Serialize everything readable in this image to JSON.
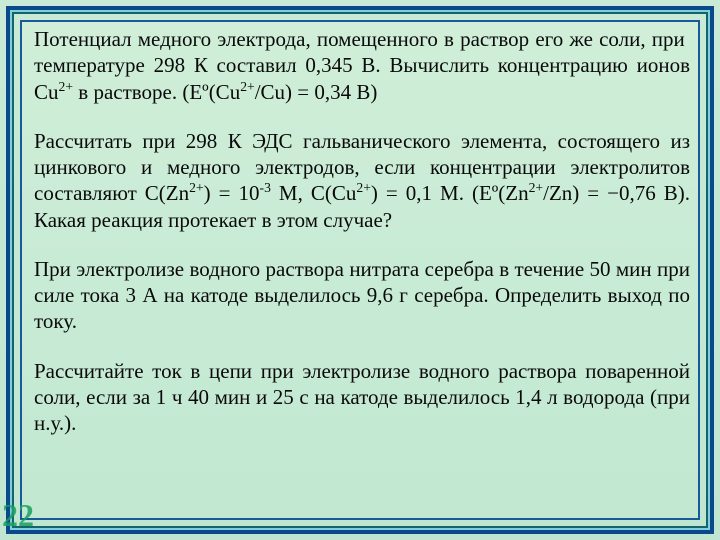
{
  "page_number": "22",
  "colors": {
    "background_top": "#c8ead6",
    "background_bottom": "#c0e6d2",
    "frame_outer": "#0a4a8a",
    "frame_highlight": "#7fcfe0",
    "frame_dark": "#14646a",
    "frame_inner": "#165a9a",
    "text_color": "#0a0a0a",
    "page_number_color": "#1aa060"
  },
  "typography": {
    "body_font": "Times New Roman",
    "body_fontsize": 21,
    "page_number_fontsize": 32,
    "line_height": 1.25,
    "align": "justify"
  },
  "paragraphs": {
    "p1": "Потенциал медного электрода, помещенного в раствор его же соли, при температуре 298 К составил 0,345 В. Вычислить концентрацию ионов Cu²⁺ в растворе. (Eº(Cu²⁺/Cu) = 0,34 В)",
    "p2": "Рассчитать при 298 К ЭДС гальванического элемента, состоящего из цинкового и медного электродов, если концентрации электролитов составляют С(Zn²⁺) = 10⁻³ М, С(Cu²⁺) = 0,1 М. (Eº(Zn²⁺/Zn) = −0,76 В). Какая реакция протекает в этом случае?",
    "p3": "При электролизе водного раствора нитрата серебра в течение 50 мин при силе тока 3 А на катоде выделилось 9,6 г серебра. Определить выход по току.",
    "p4": "Рассчитайте ток в цепи при электролизе водного раствора поваренной соли, если за 1 ч 40 мин и 25 с на катоде выделилось 1,4 л водорода (при н.у.)."
  }
}
